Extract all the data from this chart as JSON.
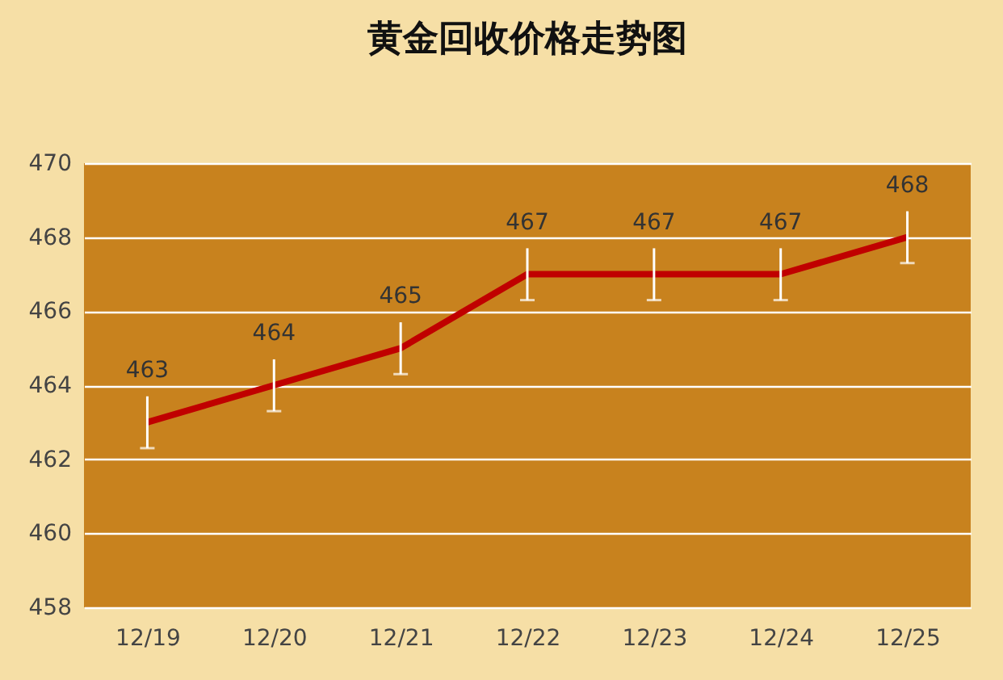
{
  "chart_data": {
    "type": "line",
    "title": "黄金回收价格走势图",
    "categories": [
      "12/19",
      "12/20",
      "12/21",
      "12/22",
      "12/23",
      "12/24",
      "12/25"
    ],
    "series": [
      {
        "color": "#c00000",
        "values": [
          463,
          464,
          465,
          467,
          467,
          467,
          468
        ],
        "errors": [
          0.7,
          0.7,
          0.7,
          0.7,
          0.7,
          0.7,
          0.7
        ]
      }
    ],
    "ylim": [
      458,
      470
    ],
    "yticks": [
      458,
      460,
      462,
      464,
      466,
      468,
      470
    ],
    "grid": "y",
    "marker": "none",
    "line_style": "solid",
    "data_labels": true
  }
}
